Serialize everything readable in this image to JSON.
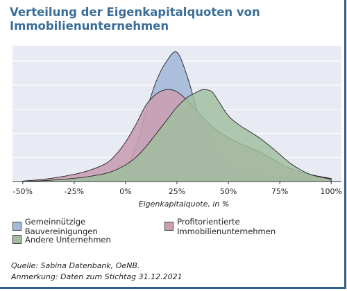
{
  "title": "Verteilung der Eigenkapitalquoten von Immobilienunternehmen",
  "chart_data": {
    "type": "area",
    "xlabel": "Eigenkapitalquote, in %",
    "ylabel": "",
    "xlim": [
      -0.55,
      1.05
    ],
    "ylim": [
      0,
      3.1
    ],
    "x_ticks": [
      -0.5,
      -0.25,
      0,
      0.25,
      0.5,
      0.75,
      1.0
    ],
    "x_tick_labels": [
      "-50%",
      "-25%",
      "0%",
      "25%",
      "50%",
      "75%",
      "100%"
    ],
    "y_gridlines": [
      0.55,
      1.1,
      1.65,
      2.2,
      2.75
    ],
    "grid": true,
    "legend_position": "bottom",
    "series": [
      {
        "name": "Gemeinnützige Bauvereinigungen",
        "color": "#a4b9d9",
        "x": [
          -0.5,
          -0.3,
          -0.15,
          -0.05,
          0.0,
          0.05,
          0.1,
          0.15,
          0.2,
          0.25,
          0.3,
          0.35,
          0.4,
          0.45,
          0.5,
          0.6,
          0.7,
          0.8,
          0.9,
          1.0
        ],
        "y": [
          0.0,
          0.0,
          0.02,
          0.1,
          0.3,
          0.8,
          1.6,
          2.3,
          2.75,
          2.95,
          2.4,
          1.6,
          1.0,
          0.55,
          0.33,
          0.2,
          0.12,
          0.07,
          0.03,
          0.01
        ]
      },
      {
        "name": "Profitorientierte Immobilienunternehmen",
        "color": "#c9a0b2",
        "x": [
          -0.5,
          -0.4,
          -0.3,
          -0.2,
          -0.1,
          -0.05,
          0.0,
          0.05,
          0.1,
          0.15,
          0.2,
          0.25,
          0.3,
          0.35,
          0.4,
          0.45,
          0.5,
          0.55,
          0.6,
          0.65,
          0.7,
          0.75,
          0.8,
          0.85,
          0.9,
          0.95,
          1.0
        ],
        "y": [
          0.01,
          0.05,
          0.12,
          0.22,
          0.4,
          0.6,
          0.9,
          1.3,
          1.75,
          2.0,
          2.1,
          2.05,
          1.85,
          1.6,
          1.35,
          1.15,
          1.0,
          0.88,
          0.78,
          0.68,
          0.55,
          0.42,
          0.3,
          0.22,
          0.16,
          0.11,
          0.07
        ]
      },
      {
        "name": "Andere Unternehmen",
        "color": "#9fbf9f",
        "x": [
          -0.5,
          -0.4,
          -0.3,
          -0.2,
          -0.1,
          -0.05,
          0.0,
          0.05,
          0.1,
          0.15,
          0.2,
          0.25,
          0.3,
          0.35,
          0.38,
          0.42,
          0.45,
          0.5,
          0.55,
          0.6,
          0.65,
          0.7,
          0.75,
          0.8,
          0.85,
          0.9,
          0.95,
          1.0
        ],
        "y": [
          0.0,
          0.02,
          0.05,
          0.1,
          0.18,
          0.26,
          0.38,
          0.55,
          0.8,
          1.1,
          1.4,
          1.7,
          1.92,
          2.05,
          2.1,
          2.05,
          1.85,
          1.5,
          1.3,
          1.15,
          1.0,
          0.82,
          0.62,
          0.42,
          0.27,
          0.16,
          0.1,
          0.05
        ]
      }
    ]
  },
  "legend": {
    "items": [
      {
        "label": "Gemeinnützige Bauvereinigungen",
        "color": "#a4b9d9"
      },
      {
        "label": "Profitorientierte Immobilienunternehmen",
        "color": "#c9a0b2"
      },
      {
        "label": "Andere Unternehmen",
        "color": "#9fbf9f"
      }
    ]
  },
  "notes": {
    "source": "Quelle: Sabina Datenbank, OeNB.",
    "remark": "Anmerkung: Daten zum Stichtag 31.12.2021"
  },
  "colors": {
    "title": "#3a6d98",
    "plot_background": "#e8eaf4",
    "frame": "#2f5f8a"
  }
}
